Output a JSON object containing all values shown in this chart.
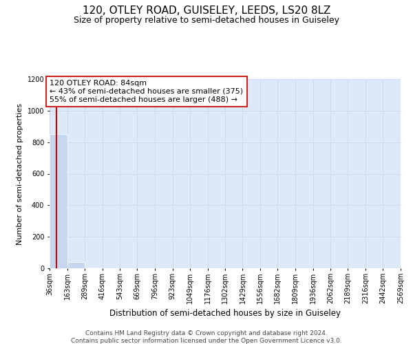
{
  "title": "120, OTLEY ROAD, GUISELEY, LEEDS, LS20 8LZ",
  "subtitle": "Size of property relative to semi-detached houses in Guiseley",
  "xlabel": "Distribution of semi-detached houses by size in Guiseley",
  "ylabel": "Number of semi-detached properties",
  "footnote1": "Contains HM Land Registry data © Crown copyright and database right 2024.",
  "footnote2": "Contains public sector information licensed under the Open Government Licence v3.0.",
  "annotation_title": "120 OTLEY ROAD: 84sqm",
  "annotation_line1": "← 43% of semi-detached houses are smaller (375)",
  "annotation_line2": "55% of semi-detached houses are larger (488) →",
  "property_size": 84,
  "bin_edges": [
    36,
    163,
    289,
    416,
    543,
    669,
    796,
    923,
    1049,
    1176,
    1302,
    1429,
    1556,
    1682,
    1809,
    1936,
    2062,
    2189,
    2316,
    2442,
    2569
  ],
  "bar_heights": [
    850,
    40,
    5,
    2,
    1,
    1,
    0,
    1,
    0,
    0,
    0,
    0,
    0,
    0,
    0,
    0,
    0,
    0,
    0,
    2
  ],
  "bar_color": "#c5d8f0",
  "grid_color": "#c8d8ea",
  "bg_color": "#dce9f8",
  "vline_color": "#cc0000",
  "annotation_border_color": "#cc2222",
  "ylim_max": 1200,
  "yticks": [
    0,
    200,
    400,
    600,
    800,
    1000,
    1200
  ],
  "title_fontsize": 11,
  "subtitle_fontsize": 9,
  "xlabel_fontsize": 8.5,
  "ylabel_fontsize": 8,
  "tick_fontsize": 7,
  "footnote_fontsize": 6.5,
  "annot_fontsize": 8
}
